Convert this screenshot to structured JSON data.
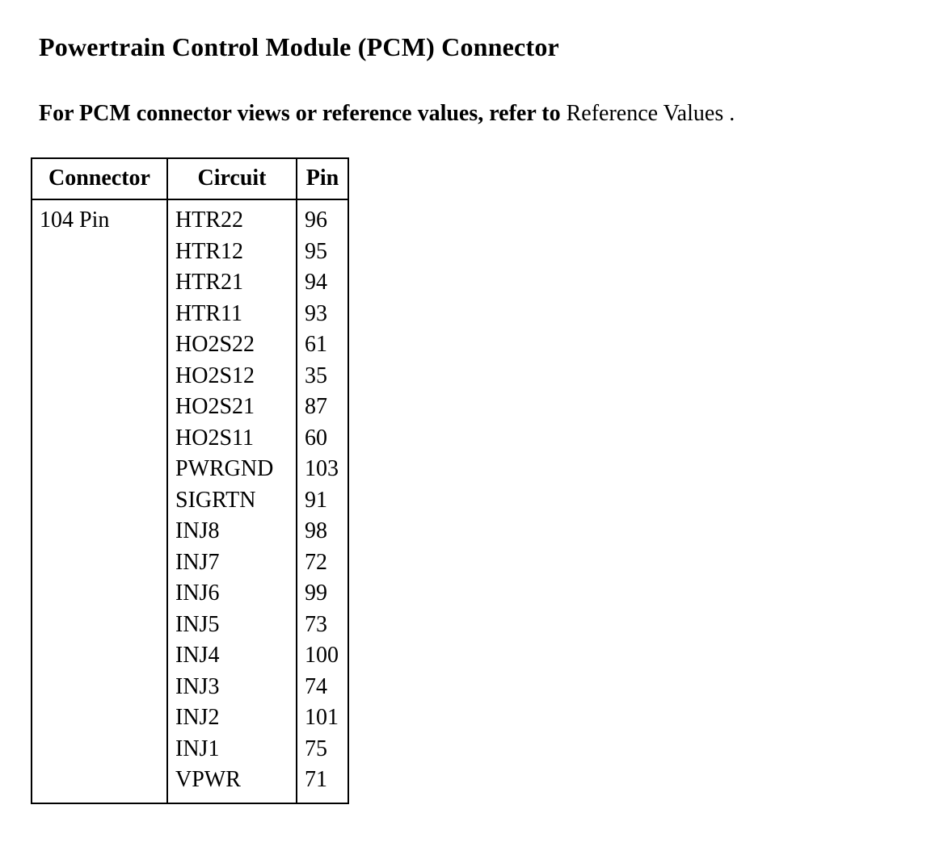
{
  "page": {
    "title": "Powertrain Control Module (PCM) Connector",
    "intro_bold": "For PCM connector views or reference values, refer to",
    "intro_link": "Reference Values",
    "intro_period": "."
  },
  "table": {
    "headers": [
      "Connector",
      "Circuit",
      "Pin"
    ],
    "rows": [
      {
        "connector": "104 Pin",
        "entries": [
          {
            "circuit": "HTR22",
            "pin": "96"
          },
          {
            "circuit": "HTR12",
            "pin": "95"
          },
          {
            "circuit": "HTR21",
            "pin": "94"
          },
          {
            "circuit": "HTR11",
            "pin": "93"
          },
          {
            "circuit": "HO2S22",
            "pin": "61"
          },
          {
            "circuit": "HO2S12",
            "pin": "35"
          },
          {
            "circuit": "HO2S21",
            "pin": "87"
          },
          {
            "circuit": "HO2S11",
            "pin": "60"
          },
          {
            "circuit": "PWRGND",
            "pin": "103"
          },
          {
            "circuit": "SIGRTN",
            "pin": "91"
          },
          {
            "circuit": "INJ8",
            "pin": "98"
          },
          {
            "circuit": "INJ7",
            "pin": "72"
          },
          {
            "circuit": "INJ6",
            "pin": "99"
          },
          {
            "circuit": "INJ5",
            "pin": "73"
          },
          {
            "circuit": "INJ4",
            "pin": "100"
          },
          {
            "circuit": "INJ3",
            "pin": "74"
          },
          {
            "circuit": "INJ2",
            "pin": "101"
          },
          {
            "circuit": "INJ1",
            "pin": "75"
          },
          {
            "circuit": "VPWR",
            "pin": "71"
          }
        ]
      }
    ]
  },
  "colors": {
    "text": "#000000",
    "background": "#ffffff",
    "border": "#000000"
  }
}
